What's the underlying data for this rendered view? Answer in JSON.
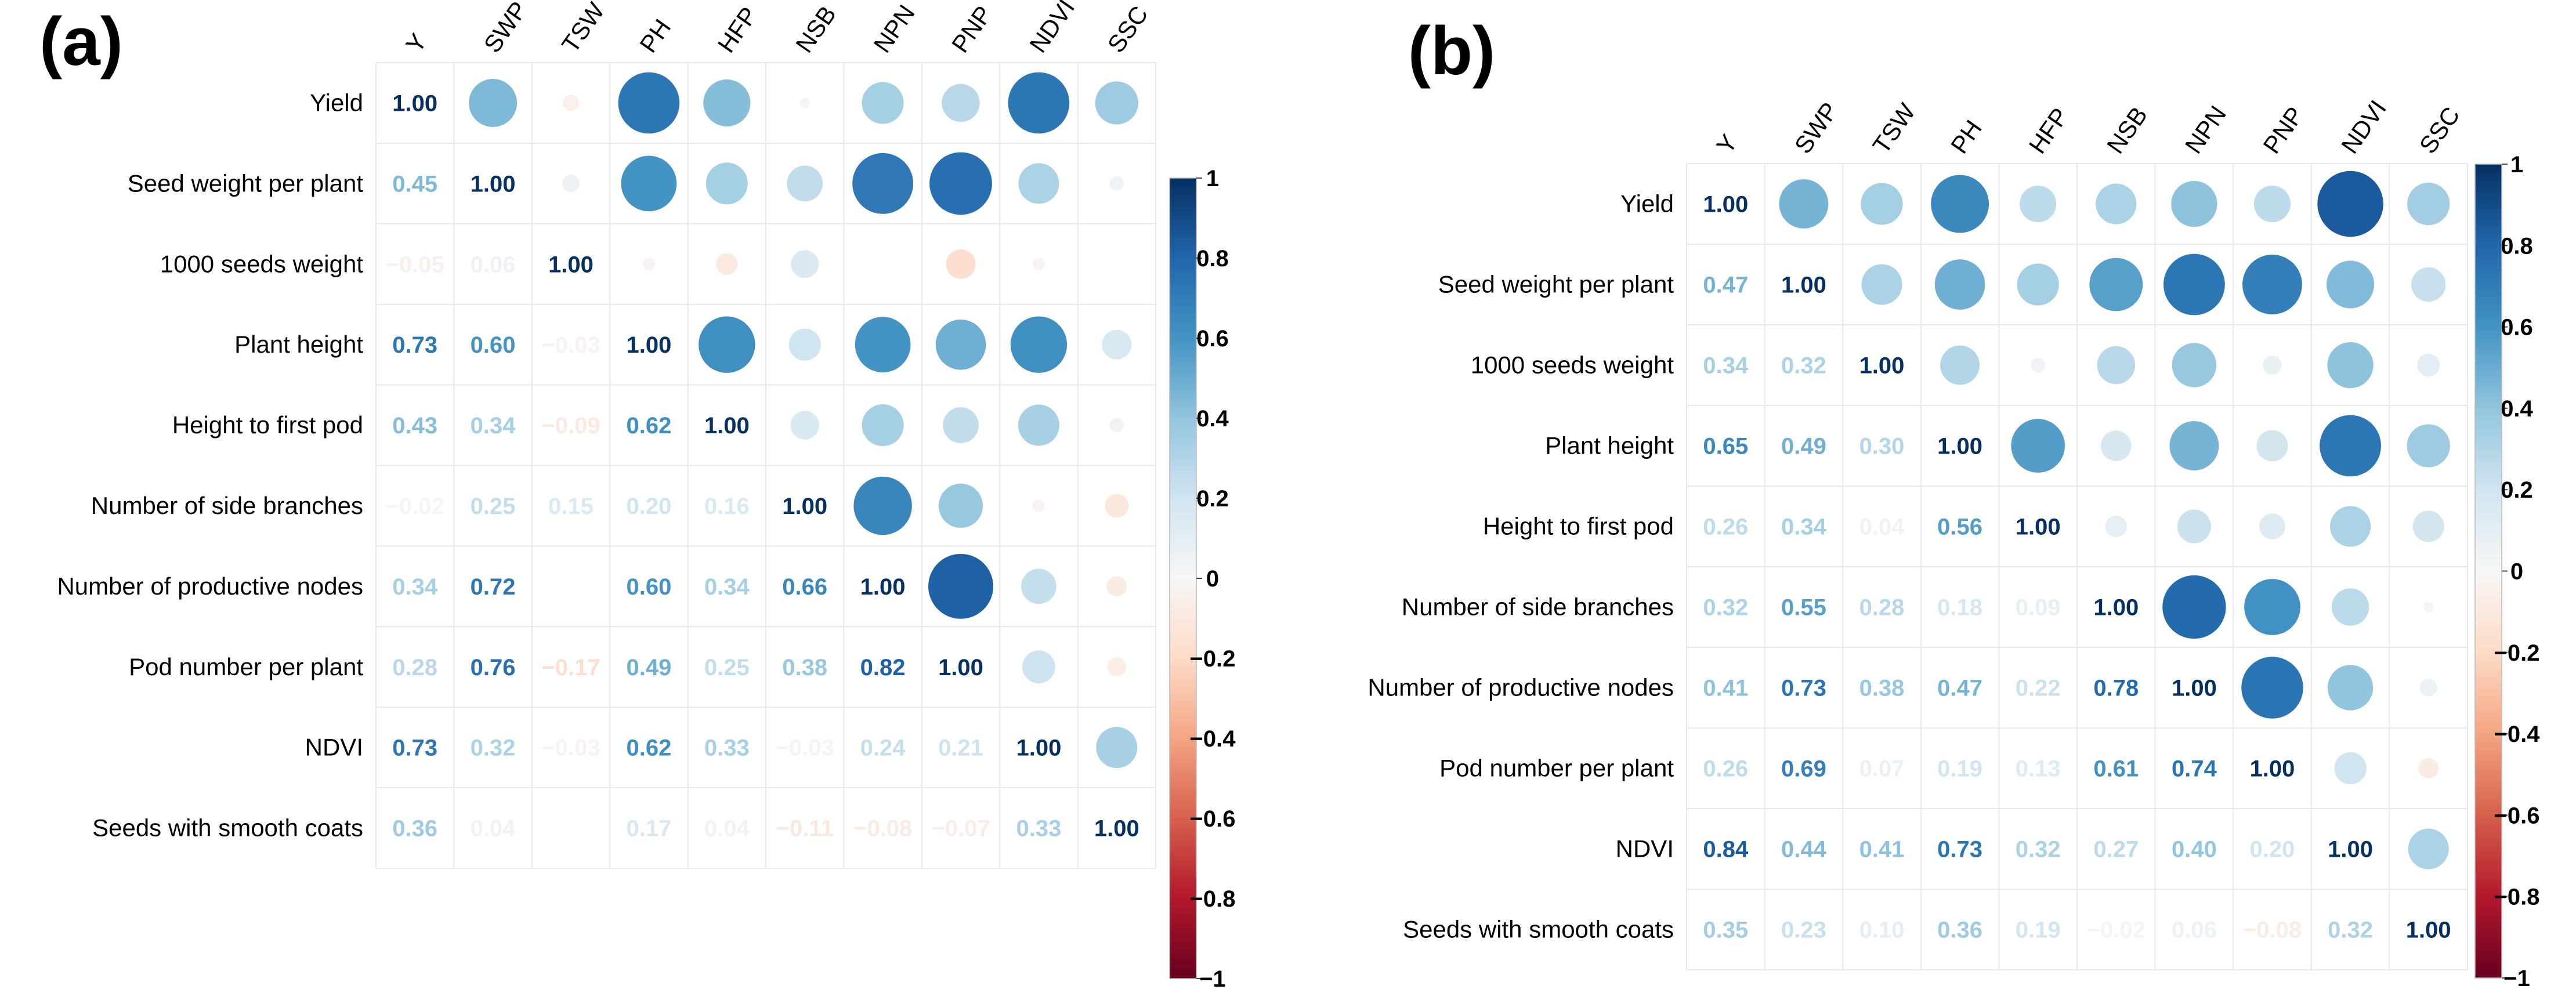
{
  "chart_data": [
    {
      "type": "heatmap",
      "panel_label": "(a)",
      "column_labels": [
        "Y",
        "SWP",
        "TSW",
        "PH",
        "HFP",
        "NSB",
        "NPN",
        "PNP",
        "NDVI",
        "SSC"
      ],
      "row_labels": [
        "Yield",
        "Seed weight per plant",
        "1000 seeds weight",
        "Plant height",
        "Height to first pod",
        "Number of side branches",
        "Number of productive nodes",
        "Pod number per plant",
        "NDVI",
        "Seeds with smooth coats"
      ],
      "lower_text": [
        [
          "1.00",
          null,
          null,
          null,
          null,
          null,
          null,
          null,
          null,
          null
        ],
        [
          "0.45",
          "1.00",
          null,
          null,
          null,
          null,
          null,
          null,
          null,
          null
        ],
        [
          "−0.05",
          "0.06",
          "1.00",
          null,
          null,
          null,
          null,
          null,
          null,
          null
        ],
        [
          "0.73",
          "0.60",
          "−0.03",
          "1.00",
          null,
          null,
          null,
          null,
          null,
          null
        ],
        [
          "0.43",
          "0.34",
          "−0.09",
          "0.62",
          "1.00",
          null,
          null,
          null,
          null,
          null
        ],
        [
          "−0.02",
          "0.25",
          "0.15",
          "0.20",
          "0.16",
          "1.00",
          null,
          null,
          null,
          null
        ],
        [
          "0.34",
          "0.72",
          "",
          "0.60",
          "0.34",
          "0.66",
          "1.00",
          null,
          null,
          null
        ],
        [
          "0.28",
          "0.76",
          "−0.17",
          "0.49",
          "0.25",
          "0.38",
          "0.82",
          "1.00",
          null,
          null
        ],
        [
          "0.73",
          "0.32",
          "−0.03",
          "0.62",
          "0.33",
          "−0.03",
          "0.24",
          "0.21",
          "1.00",
          null
        ],
        [
          "0.36",
          "0.04",
          "",
          "0.17",
          "0.04",
          "−0.11",
          "−0.08",
          "−0.07",
          "0.33",
          "1.00"
        ]
      ],
      "matrix": [
        [
          1.0,
          0.45,
          -0.05,
          0.73,
          0.43,
          -0.02,
          0.34,
          0.28,
          0.73,
          0.36
        ],
        [
          0.45,
          1.0,
          0.06,
          0.6,
          0.34,
          0.25,
          0.72,
          0.76,
          0.32,
          0.04
        ],
        [
          -0.05,
          0.06,
          1.0,
          -0.03,
          -0.09,
          0.15,
          0.0,
          -0.17,
          -0.03,
          0.0
        ],
        [
          0.73,
          0.6,
          -0.03,
          1.0,
          0.62,
          0.2,
          0.6,
          0.49,
          0.62,
          0.17
        ],
        [
          0.43,
          0.34,
          -0.09,
          0.62,
          1.0,
          0.16,
          0.34,
          0.25,
          0.33,
          0.04
        ],
        [
          -0.02,
          0.25,
          0.15,
          0.2,
          0.16,
          1.0,
          0.66,
          0.38,
          -0.03,
          -0.11
        ],
        [
          0.34,
          0.72,
          0.0,
          0.6,
          0.34,
          0.66,
          1.0,
          0.82,
          0.24,
          -0.08
        ],
        [
          0.28,
          0.76,
          -0.17,
          0.49,
          0.25,
          0.38,
          0.82,
          1.0,
          0.21,
          -0.07
        ],
        [
          0.73,
          0.32,
          -0.03,
          0.62,
          0.33,
          -0.03,
          0.24,
          0.21,
          1.0,
          0.33
        ],
        [
          0.36,
          0.04,
          0.0,
          0.17,
          0.04,
          -0.11,
          -0.08,
          -0.07,
          0.33,
          1.0
        ]
      ],
      "colorbar_ticks": [
        "1",
        "0.8",
        "0.6",
        "0.4",
        "0.2",
        "0",
        "−0.2",
        "−0.4",
        "−0.6",
        "−0.8",
        "−1"
      ],
      "colorbar_range": [
        -1,
        1
      ]
    },
    {
      "type": "heatmap",
      "panel_label": "(b)",
      "column_labels": [
        "Y",
        "SWP",
        "TSW",
        "PH",
        "HFP",
        "NSB",
        "NPN",
        "PNP",
        "NDVI",
        "SSC"
      ],
      "row_labels": [
        "Yield",
        "Seed weight per plant",
        "1000 seeds weight",
        "Plant height",
        "Height to first pod",
        "Number of side branches",
        "Number of productive nodes",
        "Pod number per plant",
        "NDVI",
        "Seeds with smooth coats"
      ],
      "lower_text": [
        [
          "1.00",
          null,
          null,
          null,
          null,
          null,
          null,
          null,
          null,
          null
        ],
        [
          "0.47",
          "1.00",
          null,
          null,
          null,
          null,
          null,
          null,
          null,
          null
        ],
        [
          "0.34",
          "0.32",
          "1.00",
          null,
          null,
          null,
          null,
          null,
          null,
          null
        ],
        [
          "0.65",
          "0.49",
          "0.30",
          "1.00",
          null,
          null,
          null,
          null,
          null,
          null
        ],
        [
          "0.26",
          "0.34",
          "0.04",
          "0.56",
          "1.00",
          null,
          null,
          null,
          null,
          null
        ],
        [
          "0.32",
          "0.55",
          "0.28",
          "0.18",
          "0.09",
          "1.00",
          null,
          null,
          null,
          null
        ],
        [
          "0.41",
          "0.73",
          "0.38",
          "0.47",
          "0.22",
          "0.78",
          "1.00",
          null,
          null,
          null
        ],
        [
          "0.26",
          "0.69",
          "0.07",
          "0.19",
          "0.13",
          "0.61",
          "0.74",
          "1.00",
          null,
          null
        ],
        [
          "0.84",
          "0.44",
          "0.41",
          "0.73",
          "0.32",
          "0.27",
          "0.40",
          "0.20",
          "1.00",
          null
        ],
        [
          "0.35",
          "0.23",
          "0.10",
          "0.36",
          "0.19",
          "−0.02",
          "0.06",
          "−0.08",
          "0.32",
          "1.00"
        ]
      ],
      "matrix": [
        [
          1.0,
          0.47,
          0.34,
          0.65,
          0.26,
          0.32,
          0.41,
          0.26,
          0.84,
          0.35
        ],
        [
          0.47,
          1.0,
          0.32,
          0.49,
          0.34,
          0.55,
          0.73,
          0.69,
          0.44,
          0.23
        ],
        [
          0.34,
          0.32,
          1.0,
          0.3,
          0.04,
          0.28,
          0.38,
          0.07,
          0.41,
          0.1
        ],
        [
          0.65,
          0.49,
          0.3,
          1.0,
          0.56,
          0.18,
          0.47,
          0.19,
          0.73,
          0.36
        ],
        [
          0.26,
          0.34,
          0.04,
          0.56,
          1.0,
          0.09,
          0.22,
          0.13,
          0.32,
          0.19
        ],
        [
          0.32,
          0.55,
          0.28,
          0.18,
          0.09,
          1.0,
          0.78,
          0.61,
          0.27,
          -0.02
        ],
        [
          0.41,
          0.73,
          0.38,
          0.47,
          0.22,
          0.78,
          1.0,
          0.74,
          0.4,
          0.06
        ],
        [
          0.26,
          0.69,
          0.07,
          0.19,
          0.13,
          0.61,
          0.74,
          1.0,
          0.2,
          -0.08
        ],
        [
          0.84,
          0.44,
          0.41,
          0.73,
          0.32,
          0.27,
          0.4,
          0.2,
          1.0,
          0.32
        ],
        [
          0.35,
          0.23,
          0.1,
          0.36,
          0.19,
          -0.02,
          0.06,
          -0.08,
          0.32,
          1.0
        ]
      ],
      "colorbar_ticks": [
        "1",
        "0.8",
        "0.6",
        "0.4",
        "0.2",
        "0",
        "−0.2",
        "−0.4",
        "−0.6",
        "−0.8",
        "−1"
      ],
      "colorbar_range": [
        -1,
        1
      ]
    }
  ]
}
